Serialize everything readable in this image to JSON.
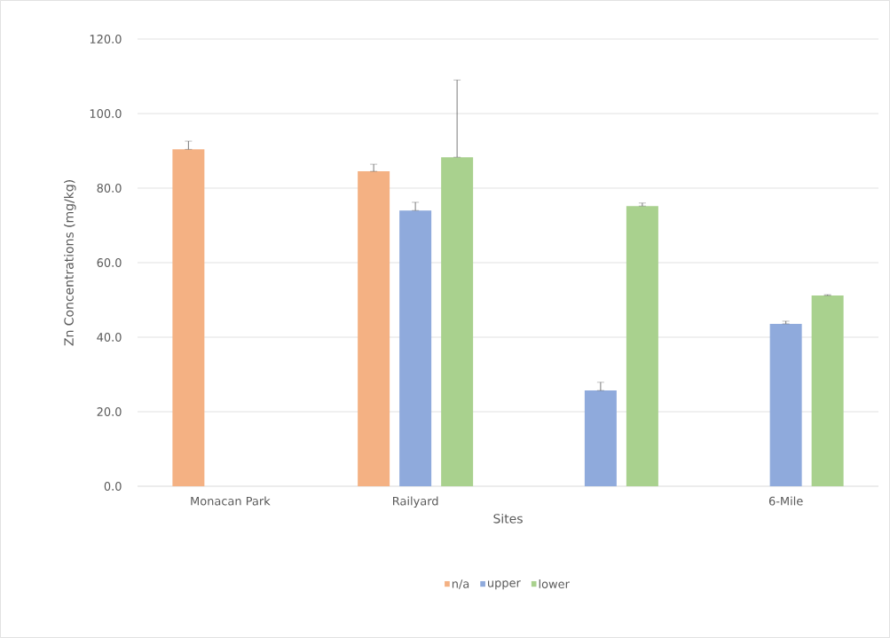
{
  "chart_data": {
    "type": "bar",
    "xlabel": "Sites",
    "ylabel": "Zn Concentrations (mg/kg)",
    "categories": [
      "Monacan Park",
      "Railyard",
      null,
      "6-Mile"
    ],
    "series": [
      {
        "name": "n/a",
        "color": "#f4b183",
        "values": [
          90.4,
          84.5,
          null,
          null
        ],
        "errors": [
          [
            90.4,
            92.6
          ],
          [
            84.5,
            86.4
          ],
          null,
          null
        ]
      },
      {
        "name": "upper",
        "color": "#8faadc",
        "values": [
          null,
          74.0,
          25.7,
          43.6
        ],
        "errors": [
          null,
          [
            74.0,
            76.2
          ],
          [
            25.7,
            27.9
          ],
          [
            43.6,
            44.3
          ]
        ]
      },
      {
        "name": "lower",
        "color": "#a9d18e",
        "values": [
          null,
          88.3,
          75.2,
          51.2
        ],
        "errors": [
          null,
          [
            88.3,
            109.0
          ],
          [
            75.2,
            76.0
          ],
          [
            51.2,
            51.4
          ]
        ]
      }
    ],
    "ylim": [
      0,
      120
    ],
    "yticks": [
      {
        "value": 0,
        "label": "0.0"
      },
      {
        "value": 20,
        "label": "20.0"
      },
      {
        "value": 40,
        "label": "40.0"
      },
      {
        "value": 60,
        "label": "60.0"
      },
      {
        "value": 80,
        "label": "80.0"
      },
      {
        "value": 100,
        "label": "100.0"
      },
      {
        "value": 120,
        "label": "120.0"
      }
    ],
    "grid": "y",
    "legend": "bottom"
  }
}
